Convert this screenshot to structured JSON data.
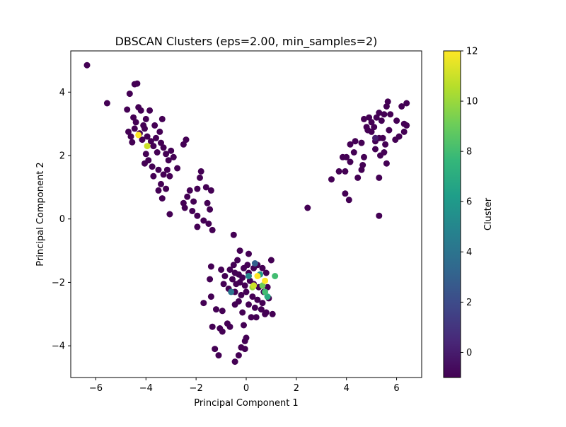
{
  "chart_data": {
    "type": "scatter",
    "title": "DBSCAN Clusters (eps=2.00, min_samples=2)",
    "xlabel": "Principal Component 1",
    "ylabel": "Principal Component 2",
    "xlim": [
      -7,
      7
    ],
    "ylim": [
      -5,
      5.3
    ],
    "xticks": [
      -6,
      -4,
      -2,
      0,
      2,
      4,
      6
    ],
    "yticks": [
      -4,
      -2,
      0,
      2,
      4
    ],
    "grid": false,
    "legend": "none",
    "colorbar": {
      "label": "Cluster",
      "range": [
        -1,
        12
      ],
      "ticks": [
        0,
        2,
        4,
        6,
        8,
        10,
        12
      ],
      "colormap": "viridis",
      "colors": [
        "#440154",
        "#482878",
        "#3e4989",
        "#31688e",
        "#26828e",
        "#1f9e89",
        "#35b779",
        "#6ece58",
        "#b5de2b",
        "#fde725"
      ]
    },
    "points": [
      {
        "x": -6.35,
        "y": 4.85,
        "c": -1
      },
      {
        "x": -5.55,
        "y": 3.65,
        "c": -1
      },
      {
        "x": -4.75,
        "y": 3.45,
        "c": -1
      },
      {
        "x": -4.65,
        "y": 3.95,
        "c": -1
      },
      {
        "x": -4.45,
        "y": 4.25,
        "c": -1
      },
      {
        "x": -4.35,
        "y": 4.27,
        "c": -1
      },
      {
        "x": -4.3,
        "y": 3.52,
        "c": -1
      },
      {
        "x": -4.2,
        "y": 3.42,
        "c": -1
      },
      {
        "x": -4.5,
        "y": 3.2,
        "c": -1
      },
      {
        "x": -4.4,
        "y": 3.05,
        "c": -1
      },
      {
        "x": -4.1,
        "y": 2.95,
        "c": -1
      },
      {
        "x": -4.0,
        "y": 3.15,
        "c": -1
      },
      {
        "x": -3.85,
        "y": 3.42,
        "c": -1
      },
      {
        "x": -3.65,
        "y": 2.95,
        "c": -1
      },
      {
        "x": -3.35,
        "y": 3.15,
        "c": -1
      },
      {
        "x": -4.7,
        "y": 2.75,
        "c": -1
      },
      {
        "x": -4.6,
        "y": 2.6,
        "c": -1
      },
      {
        "x": -4.55,
        "y": 2.42,
        "c": -1
      },
      {
        "x": -4.45,
        "y": 2.85,
        "c": -1
      },
      {
        "x": -4.25,
        "y": 2.7,
        "c": -1
      },
      {
        "x": -4.15,
        "y": 2.5,
        "c": -1
      },
      {
        "x": -4.05,
        "y": 2.85,
        "c": -1
      },
      {
        "x": -3.95,
        "y": 2.6,
        "c": -1
      },
      {
        "x": -3.8,
        "y": 2.45,
        "c": -1
      },
      {
        "x": -3.7,
        "y": 2.3,
        "c": -1
      },
      {
        "x": -3.6,
        "y": 2.55,
        "c": -1
      },
      {
        "x": -3.45,
        "y": 2.75,
        "c": -1
      },
      {
        "x": -3.4,
        "y": 2.4,
        "c": -1
      },
      {
        "x": -3.3,
        "y": 2.25,
        "c": -1
      },
      {
        "x": -3.55,
        "y": 2.1,
        "c": -1
      },
      {
        "x": -3.2,
        "y": 2.05,
        "c": -1
      },
      {
        "x": -3.1,
        "y": 1.85,
        "c": -1
      },
      {
        "x": -3.0,
        "y": 2.15,
        "c": -1
      },
      {
        "x": -2.9,
        "y": 1.95,
        "c": -1
      },
      {
        "x": -4.0,
        "y": 2.05,
        "c": -1
      },
      {
        "x": -3.9,
        "y": 1.85,
        "c": -1
      },
      {
        "x": -4.05,
        "y": 1.75,
        "c": -1
      },
      {
        "x": -3.75,
        "y": 1.65,
        "c": -1
      },
      {
        "x": -3.5,
        "y": 1.55,
        "c": -1
      },
      {
        "x": -3.3,
        "y": 1.4,
        "c": -1
      },
      {
        "x": -3.15,
        "y": 1.55,
        "c": -1
      },
      {
        "x": -3.05,
        "y": 1.35,
        "c": -1
      },
      {
        "x": -3.7,
        "y": 1.35,
        "c": -1
      },
      {
        "x": -3.4,
        "y": 1.1,
        "c": -1
      },
      {
        "x": -3.5,
        "y": 0.9,
        "c": -1
      },
      {
        "x": -3.2,
        "y": 0.95,
        "c": -1
      },
      {
        "x": -3.35,
        "y": 0.65,
        "c": -1
      },
      {
        "x": -2.75,
        "y": 1.6,
        "c": -1
      },
      {
        "x": -2.5,
        "y": 2.35,
        "c": -1
      },
      {
        "x": -2.4,
        "y": 2.5,
        "c": -1
      },
      {
        "x": -3.05,
        "y": 0.15,
        "c": -1
      },
      {
        "x": -4.3,
        "y": 2.65,
        "c": 12
      },
      {
        "x": -3.95,
        "y": 2.3,
        "c": 11
      },
      {
        "x": -1.8,
        "y": 1.5,
        "c": -1
      },
      {
        "x": -1.85,
        "y": 1.3,
        "c": -1
      },
      {
        "x": -1.6,
        "y": 1.0,
        "c": -1
      },
      {
        "x": -1.4,
        "y": 0.9,
        "c": -1
      },
      {
        "x": -2.25,
        "y": 0.9,
        "c": -1
      },
      {
        "x": -1.95,
        "y": 0.95,
        "c": -1
      },
      {
        "x": -2.35,
        "y": 0.7,
        "c": -1
      },
      {
        "x": -2.5,
        "y": 0.5,
        "c": -1
      },
      {
        "x": -2.45,
        "y": 0.35,
        "c": -1
      },
      {
        "x": -2.1,
        "y": 0.55,
        "c": -1
      },
      {
        "x": -2.15,
        "y": 0.25,
        "c": -1
      },
      {
        "x": -1.95,
        "y": 0.1,
        "c": -1
      },
      {
        "x": -1.55,
        "y": 0.5,
        "c": -1
      },
      {
        "x": -1.45,
        "y": 0.3,
        "c": -1
      },
      {
        "x": -1.7,
        "y": -0.05,
        "c": -1
      },
      {
        "x": -1.95,
        "y": -0.25,
        "c": -1
      },
      {
        "x": -1.5,
        "y": -0.15,
        "c": -1
      },
      {
        "x": -1.35,
        "y": -0.35,
        "c": -1
      },
      {
        "x": -0.5,
        "y": -0.5,
        "c": -1
      },
      {
        "x": -0.25,
        "y": -1.0,
        "c": -1
      },
      {
        "x": 0.1,
        "y": -1.1,
        "c": -1
      },
      {
        "x": -0.35,
        "y": -1.3,
        "c": -1
      },
      {
        "x": 0.05,
        "y": -1.45,
        "c": -1
      },
      {
        "x": -0.1,
        "y": -1.55,
        "c": -1
      },
      {
        "x": -0.5,
        "y": -1.45,
        "c": -1
      },
      {
        "x": -0.65,
        "y": -1.6,
        "c": -1
      },
      {
        "x": -0.45,
        "y": -1.7,
        "c": -1
      },
      {
        "x": -0.3,
        "y": -1.75,
        "c": -1
      },
      {
        "x": -0.15,
        "y": -1.85,
        "c": -1
      },
      {
        "x": 0.1,
        "y": -1.7,
        "c": -1
      },
      {
        "x": 0.3,
        "y": -1.55,
        "c": -1
      },
      {
        "x": 0.45,
        "y": -1.45,
        "c": -1
      },
      {
        "x": 0.65,
        "y": -1.55,
        "c": -1
      },
      {
        "x": 0.8,
        "y": -1.7,
        "c": -1
      },
      {
        "x": 1.0,
        "y": -1.3,
        "c": -1
      },
      {
        "x": -0.55,
        "y": -1.9,
        "c": -1
      },
      {
        "x": -0.4,
        "y": -2.05,
        "c": -1
      },
      {
        "x": -0.25,
        "y": -2.0,
        "c": -1
      },
      {
        "x": -0.05,
        "y": -2.1,
        "c": -1
      },
      {
        "x": 0.15,
        "y": -1.95,
        "c": -1
      },
      {
        "x": 0.3,
        "y": -2.05,
        "c": -1
      },
      {
        "x": 0.5,
        "y": -2.15,
        "c": -1
      },
      {
        "x": 0.7,
        "y": -2.3,
        "c": -1
      },
      {
        "x": 0.85,
        "y": -2.15,
        "c": -1
      },
      {
        "x": -0.7,
        "y": -2.2,
        "c": -1
      },
      {
        "x": -0.45,
        "y": -2.3,
        "c": -1
      },
      {
        "x": -0.2,
        "y": -2.4,
        "c": -1
      },
      {
        "x": 0.0,
        "y": -2.3,
        "c": -1
      },
      {
        "x": 0.25,
        "y": -2.45,
        "c": -1
      },
      {
        "x": 0.45,
        "y": -2.55,
        "c": -1
      },
      {
        "x": 0.65,
        "y": -2.65,
        "c": -1
      },
      {
        "x": 0.9,
        "y": -2.5,
        "c": -1
      },
      {
        "x": -0.3,
        "y": -2.6,
        "c": -1
      },
      {
        "x": 0.1,
        "y": -2.7,
        "c": -1
      },
      {
        "x": 0.35,
        "y": -2.8,
        "c": -1
      },
      {
        "x": 0.6,
        "y": -2.85,
        "c": -1
      },
      {
        "x": 0.8,
        "y": -2.95,
        "c": -1
      },
      {
        "x": -0.45,
        "y": -2.7,
        "c": -1
      },
      {
        "x": -0.15,
        "y": -2.95,
        "c": -1
      },
      {
        "x": 0.2,
        "y": -3.1,
        "c": -1
      },
      {
        "x": 0.4,
        "y": -3.1,
        "c": -1
      },
      {
        "x": 0.75,
        "y": -3.0,
        "c": -1
      },
      {
        "x": 1.05,
        "y": -3.0,
        "c": -1
      },
      {
        "x": -1.4,
        "y": -1.5,
        "c": -1
      },
      {
        "x": -1.45,
        "y": -1.9,
        "c": -1
      },
      {
        "x": -1.0,
        "y": -1.6,
        "c": -1
      },
      {
        "x": -0.85,
        "y": -1.8,
        "c": -1
      },
      {
        "x": -0.9,
        "y": -2.05,
        "c": -1
      },
      {
        "x": -1.4,
        "y": -2.45,
        "c": -1
      },
      {
        "x": -1.7,
        "y": -2.65,
        "c": -1
      },
      {
        "x": -1.2,
        "y": -2.85,
        "c": -1
      },
      {
        "x": -0.95,
        "y": -2.9,
        "c": -1
      },
      {
        "x": -0.75,
        "y": -3.3,
        "c": -1
      },
      {
        "x": -0.65,
        "y": -3.4,
        "c": -1
      },
      {
        "x": -0.1,
        "y": -3.35,
        "c": -1
      },
      {
        "x": -1.35,
        "y": -3.4,
        "c": -1
      },
      {
        "x": -1.05,
        "y": -3.45,
        "c": -1
      },
      {
        "x": -0.95,
        "y": -3.55,
        "c": -1
      },
      {
        "x": -0.05,
        "y": -3.85,
        "c": -1
      },
      {
        "x": 0.0,
        "y": -3.75,
        "c": -1
      },
      {
        "x": -0.2,
        "y": -4.05,
        "c": -1
      },
      {
        "x": -0.05,
        "y": -4.1,
        "c": -1
      },
      {
        "x": -1.25,
        "y": -4.1,
        "c": -1
      },
      {
        "x": -1.1,
        "y": -4.3,
        "c": -1
      },
      {
        "x": -0.3,
        "y": -4.3,
        "c": -1
      },
      {
        "x": -0.45,
        "y": -4.5,
        "c": -1
      },
      {
        "x": 0.35,
        "y": -1.4,
        "c": 3
      },
      {
        "x": -0.6,
        "y": -2.3,
        "c": 4
      },
      {
        "x": 0.1,
        "y": -1.8,
        "c": 5
      },
      {
        "x": 0.55,
        "y": -1.75,
        "c": 6
      },
      {
        "x": 0.85,
        "y": -2.45,
        "c": 7
      },
      {
        "x": 0.75,
        "y": -2.3,
        "c": 8
      },
      {
        "x": 1.15,
        "y": -1.8,
        "c": 8
      },
      {
        "x": 0.65,
        "y": -2.1,
        "c": 9
      },
      {
        "x": 0.25,
        "y": -2.15,
        "c": 10
      },
      {
        "x": 0.45,
        "y": -1.8,
        "c": 12
      },
      {
        "x": 0.75,
        "y": -1.95,
        "c": 12
      },
      {
        "x": 0.3,
        "y": -2.1,
        "c": 11
      },
      {
        "x": 2.45,
        "y": 0.35,
        "c": -1
      },
      {
        "x": 3.4,
        "y": 1.25,
        "c": -1
      },
      {
        "x": 3.7,
        "y": 1.5,
        "c": -1
      },
      {
        "x": 3.95,
        "y": 1.5,
        "c": -1
      },
      {
        "x": 3.95,
        "y": 0.8,
        "c": -1
      },
      {
        "x": 4.1,
        "y": 0.6,
        "c": -1
      },
      {
        "x": 4.45,
        "y": 1.3,
        "c": -1
      },
      {
        "x": 4.6,
        "y": 1.55,
        "c": -1
      },
      {
        "x": 4.65,
        "y": 1.7,
        "c": -1
      },
      {
        "x": 3.85,
        "y": 1.95,
        "c": -1
      },
      {
        "x": 4.0,
        "y": 1.95,
        "c": -1
      },
      {
        "x": 4.15,
        "y": 1.8,
        "c": -1
      },
      {
        "x": 4.15,
        "y": 2.35,
        "c": -1
      },
      {
        "x": 4.3,
        "y": 2.1,
        "c": -1
      },
      {
        "x": 4.35,
        "y": 2.45,
        "c": -1
      },
      {
        "x": 4.6,
        "y": 2.4,
        "c": -1
      },
      {
        "x": 4.7,
        "y": 1.95,
        "c": -1
      },
      {
        "x": 4.85,
        "y": 2.8,
        "c": -1
      },
      {
        "x": 4.7,
        "y": 3.15,
        "c": -1
      },
      {
        "x": 4.8,
        "y": 2.9,
        "c": -1
      },
      {
        "x": 4.9,
        "y": 3.2,
        "c": -1
      },
      {
        "x": 5.0,
        "y": 3.05,
        "c": -1
      },
      {
        "x": 5.0,
        "y": 2.75,
        "c": -1
      },
      {
        "x": 5.1,
        "y": 2.9,
        "c": -1
      },
      {
        "x": 5.15,
        "y": 2.45,
        "c": -1
      },
      {
        "x": 5.15,
        "y": 2.2,
        "c": -1
      },
      {
        "x": 5.2,
        "y": 3.2,
        "c": -1
      },
      {
        "x": 5.3,
        "y": 2.55,
        "c": -1
      },
      {
        "x": 5.3,
        "y": 3.35,
        "c": -1
      },
      {
        "x": 5.4,
        "y": 3.1,
        "c": -1
      },
      {
        "x": 5.45,
        "y": 2.55,
        "c": -1
      },
      {
        "x": 5.5,
        "y": 3.3,
        "c": -1
      },
      {
        "x": 5.55,
        "y": 2.35,
        "c": -1
      },
      {
        "x": 5.6,
        "y": 3.55,
        "c": -1
      },
      {
        "x": 5.65,
        "y": 3.7,
        "c": -1
      },
      {
        "x": 5.7,
        "y": 2.8,
        "c": -1
      },
      {
        "x": 5.75,
        "y": 3.3,
        "c": -1
      },
      {
        "x": 5.35,
        "y": 2.0,
        "c": -1
      },
      {
        "x": 5.5,
        "y": 2.1,
        "c": -1
      },
      {
        "x": 5.6,
        "y": 1.75,
        "c": -1
      },
      {
        "x": 5.3,
        "y": 1.3,
        "c": -1
      },
      {
        "x": 5.3,
        "y": 0.1,
        "c": -1
      },
      {
        "x": 5.95,
        "y": 2.5,
        "c": -1
      },
      {
        "x": 6.0,
        "y": 3.1,
        "c": -1
      },
      {
        "x": 6.1,
        "y": 2.6,
        "c": -1
      },
      {
        "x": 6.2,
        "y": 3.55,
        "c": -1
      },
      {
        "x": 6.3,
        "y": 2.75,
        "c": -1
      },
      {
        "x": 6.3,
        "y": 3.0,
        "c": -1
      },
      {
        "x": 6.4,
        "y": 3.65,
        "c": -1
      },
      {
        "x": 6.4,
        "y": 2.95,
        "c": -1
      },
      {
        "x": 5.15,
        "y": 2.55,
        "c": 0
      }
    ]
  }
}
